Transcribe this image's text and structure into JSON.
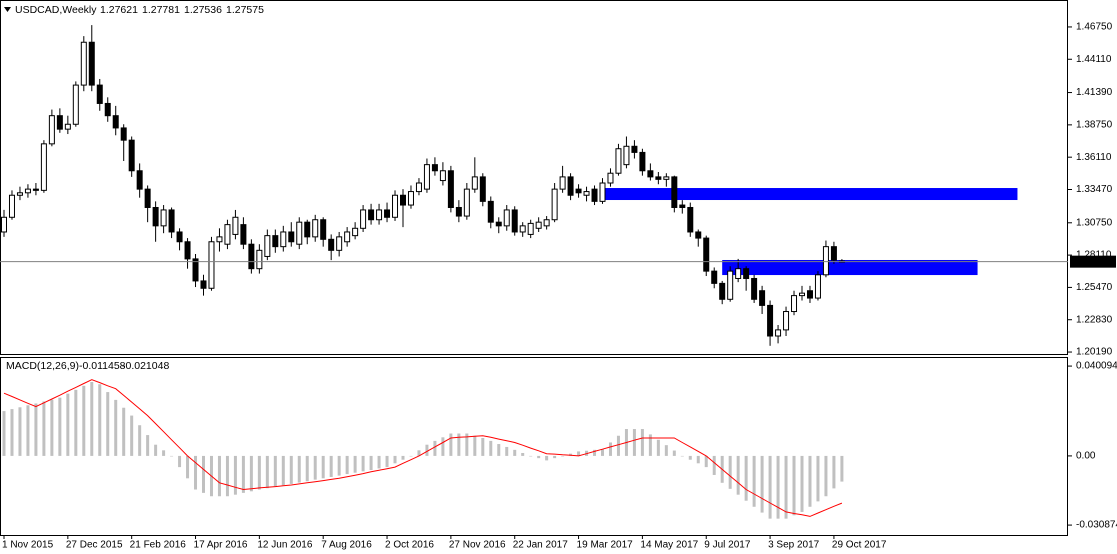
{
  "chart_data": [
    {
      "type": "candlestick",
      "title": "USDCAD,Weekly",
      "categories": [
        "1 Nov 2015",
        null,
        null,
        null,
        null,
        null,
        null,
        null,
        "27 Dec 2015",
        null,
        null,
        null,
        null,
        null,
        null,
        null,
        "21 Feb 2016",
        null,
        null,
        null,
        null,
        null,
        null,
        null,
        "17 Apr 2016",
        null,
        null,
        null,
        null,
        null,
        null,
        null,
        "12 Jun 2016",
        null,
        null,
        null,
        null,
        null,
        null,
        null,
        "7 Aug 2016",
        null,
        null,
        null,
        null,
        null,
        null,
        null,
        "2 Oct 2016",
        null,
        null,
        null,
        null,
        null,
        null,
        null,
        "27 Nov 2016",
        null,
        null,
        null,
        null,
        null,
        null,
        null,
        "22 Jan 2017",
        null,
        null,
        null,
        null,
        null,
        null,
        null,
        "19 Mar 2017",
        null,
        null,
        null,
        null,
        null,
        null,
        null,
        "14 May 2017",
        null,
        null,
        null,
        null,
        null,
        null,
        null,
        "9 Jul 2017",
        null,
        null,
        null,
        null,
        null,
        null,
        null,
        "3 Sep 2017",
        null,
        null,
        null,
        null,
        null,
        null,
        null,
        "29 Oct 2017",
        null
      ],
      "open": [
        1.3,
        1.312,
        1.33,
        1.332,
        1.335,
        1.334,
        1.372,
        1.395,
        1.384,
        1.388,
        1.42,
        1.455,
        1.42,
        1.405,
        1.395,
        1.385,
        1.375,
        1.35,
        1.335,
        1.32,
        1.305,
        1.318,
        1.3,
        1.292,
        1.278,
        1.26,
        1.254,
        1.292,
        1.29,
        1.298,
        1.306,
        1.29,
        1.27,
        1.28,
        1.297,
        1.288,
        1.3,
        1.29,
        1.308,
        1.296,
        1.31,
        1.294,
        1.285,
        1.292,
        1.297,
        1.303,
        1.318,
        1.31,
        1.318,
        1.312,
        1.33,
        1.322,
        1.333,
        1.335,
        1.355,
        1.342,
        1.35,
        1.32,
        1.313,
        1.335,
        1.345,
        1.325,
        1.308,
        1.305,
        1.318,
        1.3,
        1.298,
        1.303,
        1.305,
        1.31,
        1.335,
        1.345,
        1.335,
        1.33,
        1.335,
        1.325,
        1.34,
        1.348,
        1.355,
        1.37,
        1.365,
        1.35,
        1.345,
        1.343,
        1.345,
        1.322,
        1.32,
        1.3,
        1.295,
        1.268,
        1.258,
        1.245,
        1.262,
        1.27,
        1.262,
        1.252,
        1.24,
        1.215,
        1.22,
        1.235,
        1.248,
        1.252,
        1.246,
        1.265,
        1.288,
        1.27621
      ],
      "high": [
        1.318,
        1.334,
        1.337,
        1.339,
        1.34,
        1.375,
        1.4,
        1.401,
        1.395,
        1.423,
        1.46,
        1.469,
        1.425,
        1.41,
        1.403,
        1.388,
        1.378,
        1.356,
        1.338,
        1.325,
        1.322,
        1.32,
        1.303,
        1.295,
        1.282,
        1.265,
        1.296,
        1.303,
        1.31,
        1.318,
        1.312,
        1.294,
        1.29,
        1.302,
        1.302,
        1.305,
        1.308,
        1.312,
        1.31,
        1.314,
        1.312,
        1.298,
        1.3,
        1.304,
        1.308,
        1.322,
        1.323,
        1.323,
        1.324,
        1.334,
        1.335,
        1.338,
        1.344,
        1.36,
        1.361,
        1.357,
        1.354,
        1.326,
        1.34,
        1.361,
        1.348,
        1.329,
        1.312,
        1.322,
        1.321,
        1.308,
        1.31,
        1.312,
        1.313,
        1.34,
        1.354,
        1.348,
        1.339,
        1.337,
        1.338,
        1.344,
        1.352,
        1.372,
        1.378,
        1.375,
        1.368,
        1.356,
        1.349,
        1.348,
        1.346,
        1.326,
        1.324,
        1.302,
        1.297,
        1.271,
        1.26,
        1.272,
        1.278,
        1.272,
        1.265,
        1.256,
        1.244,
        1.224,
        1.239,
        1.252,
        1.256,
        1.256,
        1.268,
        1.293,
        1.292,
        1.27781
      ],
      "low": [
        1.296,
        1.31,
        1.326,
        1.328,
        1.33,
        1.332,
        1.37,
        1.381,
        1.38,
        1.386,
        1.415,
        1.415,
        1.399,
        1.39,
        1.379,
        1.358,
        1.345,
        1.328,
        1.308,
        1.292,
        1.299,
        1.295,
        1.285,
        1.27,
        1.255,
        1.248,
        1.252,
        1.284,
        1.286,
        1.294,
        1.286,
        1.266,
        1.266,
        1.277,
        1.283,
        1.284,
        1.288,
        1.286,
        1.29,
        1.292,
        1.288,
        1.277,
        1.28,
        1.288,
        1.294,
        1.3,
        1.306,
        1.306,
        1.308,
        1.309,
        1.304,
        1.319,
        1.33,
        1.332,
        1.346,
        1.338,
        1.316,
        1.308,
        1.31,
        1.332,
        1.321,
        1.303,
        1.299,
        1.301,
        1.297,
        1.296,
        1.295,
        1.3,
        1.302,
        1.308,
        1.332,
        1.326,
        1.328,
        1.325,
        1.322,
        1.323,
        1.337,
        1.346,
        1.352,
        1.36,
        1.346,
        1.342,
        1.339,
        1.337,
        1.316,
        1.315,
        1.296,
        1.288,
        1.264,
        1.254,
        1.241,
        1.243,
        1.259,
        1.252,
        1.242,
        1.233,
        1.207,
        1.209,
        1.215,
        1.232,
        1.244,
        1.242,
        1.244,
        1.263,
        1.274,
        1.27536
      ],
      "close": [
        1.312,
        1.33,
        1.332,
        1.335,
        1.334,
        1.372,
        1.395,
        1.384,
        1.388,
        1.42,
        1.455,
        1.42,
        1.405,
        1.395,
        1.385,
        1.375,
        1.35,
        1.335,
        1.32,
        1.305,
        1.318,
        1.3,
        1.292,
        1.278,
        1.26,
        1.254,
        1.292,
        1.296,
        1.306,
        1.312,
        1.29,
        1.27,
        1.285,
        1.297,
        1.288,
        1.3,
        1.292,
        1.308,
        1.296,
        1.31,
        1.294,
        1.285,
        1.296,
        1.3,
        1.303,
        1.318,
        1.31,
        1.318,
        1.312,
        1.33,
        1.322,
        1.333,
        1.34,
        1.355,
        1.35,
        1.35,
        1.32,
        1.313,
        1.335,
        1.345,
        1.325,
        1.308,
        1.305,
        1.318,
        1.3,
        1.305,
        1.307,
        1.308,
        1.31,
        1.335,
        1.345,
        1.33,
        1.332,
        1.333,
        1.325,
        1.34,
        1.348,
        1.368,
        1.37,
        1.365,
        1.35,
        1.345,
        1.343,
        1.345,
        1.32,
        1.32,
        1.3,
        1.295,
        1.268,
        1.258,
        1.245,
        1.268,
        1.27,
        1.262,
        1.245,
        1.24,
        1.215,
        1.22,
        1.235,
        1.248,
        1.25,
        1.246,
        1.265,
        1.288,
        1.277,
        1.27575
      ],
      "ylim": [
        1.2003,
        1.4887
      ],
      "yticks": [
        {
          "value": 1.4675,
          "label": "1.46750"
        },
        {
          "value": 1.4411,
          "label": "1.44110"
        },
        {
          "value": 1.4139,
          "label": "1.41390"
        },
        {
          "value": 1.3875,
          "label": "1.38750"
        },
        {
          "value": 1.3611,
          "label": "1.36110"
        },
        {
          "value": 1.3347,
          "label": "1.33470"
        },
        {
          "value": 1.3075,
          "label": "1.30750"
        },
        {
          "value": 1.2811,
          "label": "1.28110"
        },
        {
          "value": 1.2547,
          "label": "1.25470"
        },
        {
          "value": 1.2283,
          "label": "1.22830"
        },
        {
          "value": 1.2019,
          "label": "1.20190"
        }
      ],
      "zones": [
        {
          "from": 1.3261,
          "to": 1.3359,
          "start": 75,
          "end": 127
        },
        {
          "from": 1.2648,
          "to": 1.2771,
          "start": 90,
          "end": 122
        }
      ],
      "zone_color": "#0000ff",
      "up_color": "#ffffff",
      "down_color": "#000000",
      "grid": false
    },
    {
      "type": "macd",
      "title": "MACD(12,26,9)",
      "histogram": [
        0.02,
        0.0209,
        0.0217,
        0.0226,
        0.0234,
        0.0243,
        0.0251,
        0.026,
        0.0278,
        0.0295,
        0.0313,
        0.033,
        0.032,
        0.0285,
        0.025,
        0.0215,
        0.018,
        0.0137,
        0.0093,
        0.005,
        0.0025,
        0.0,
        -0.005,
        -0.01,
        -0.015,
        -0.0165,
        -0.018,
        -0.018,
        -0.018,
        -0.0173,
        -0.0165,
        -0.0158,
        -0.015,
        -0.0144,
        -0.0138,
        -0.0131,
        -0.0125,
        -0.0119,
        -0.0113,
        -0.0106,
        -0.01,
        -0.0094,
        -0.0088,
        -0.0081,
        -0.0075,
        -0.0069,
        -0.0063,
        -0.0056,
        -0.005,
        -0.0033,
        -0.0017,
        0.0,
        0.0025,
        0.005,
        0.0067,
        0.0083,
        0.01,
        0.01,
        0.01,
        0.009,
        0.008,
        0.0067,
        0.0053,
        0.004,
        0.0027,
        0.0013,
        0.0,
        -0.001,
        -0.002,
        -0.001,
        0.0,
        0.001,
        0.002,
        0.0023,
        0.0027,
        0.003,
        0.006,
        0.009,
        0.012,
        0.012,
        0.012,
        0.0096,
        0.0072,
        0.0048,
        0.0024,
        0.0,
        -0.0017,
        -0.0033,
        -0.005,
        -0.0085,
        -0.012,
        -0.0147,
        -0.0173,
        -0.02,
        -0.0227,
        -0.0253,
        -0.028,
        -0.028,
        -0.028,
        -0.0265,
        -0.025,
        -0.0227,
        -0.0203,
        -0.018,
        -0.0145,
        -0.011458
      ],
      "signal": [
        0.028,
        0.0265,
        0.025,
        0.0235,
        0.022,
        0.0237,
        0.0254,
        0.0271,
        0.0289,
        0.0306,
        0.0323,
        0.034,
        0.0327,
        0.0313,
        0.03,
        0.027,
        0.024,
        0.021,
        0.018,
        0.0144,
        0.0108,
        0.0072,
        0.0036,
        0.0,
        -0.003,
        -0.006,
        -0.009,
        -0.012,
        -0.013,
        -0.014,
        -0.015,
        -0.0147,
        -0.0143,
        -0.014,
        -0.0137,
        -0.0133,
        -0.013,
        -0.0125,
        -0.012,
        -0.0115,
        -0.011,
        -0.0105,
        -0.01,
        -0.0093,
        -0.0086,
        -0.0079,
        -0.0071,
        -0.0064,
        -0.0057,
        -0.005,
        -0.0033,
        -0.0017,
        0.0,
        0.002,
        0.004,
        0.006,
        0.008,
        0.0083,
        0.0085,
        0.0088,
        0.009,
        0.0083,
        0.0075,
        0.0068,
        0.006,
        0.0048,
        0.0035,
        0.0023,
        0.001,
        0.0008,
        0.0005,
        0.0003,
        0.0,
        0.001,
        0.002,
        0.003,
        0.004,
        0.005,
        0.006,
        0.007,
        0.008,
        0.008,
        0.008,
        0.008,
        0.008,
        0.006,
        0.004,
        0.002,
        0.0,
        -0.003,
        -0.006,
        -0.009,
        -0.012,
        -0.015,
        -0.017,
        -0.019,
        -0.021,
        -0.023,
        -0.025,
        -0.0257,
        -0.0263,
        -0.027,
        -0.0255,
        -0.024,
        -0.0225,
        -0.021048
      ],
      "histogram_color": "#c0c0c0",
      "signal_color": "#ff0000",
      "ylim": [
        -0.0353,
        0.0437
      ],
      "yticks": [
        0.040094,
        {
          "value": 0,
          "label": "0.00"
        },
        -0.030874
      ]
    }
  ]
}
